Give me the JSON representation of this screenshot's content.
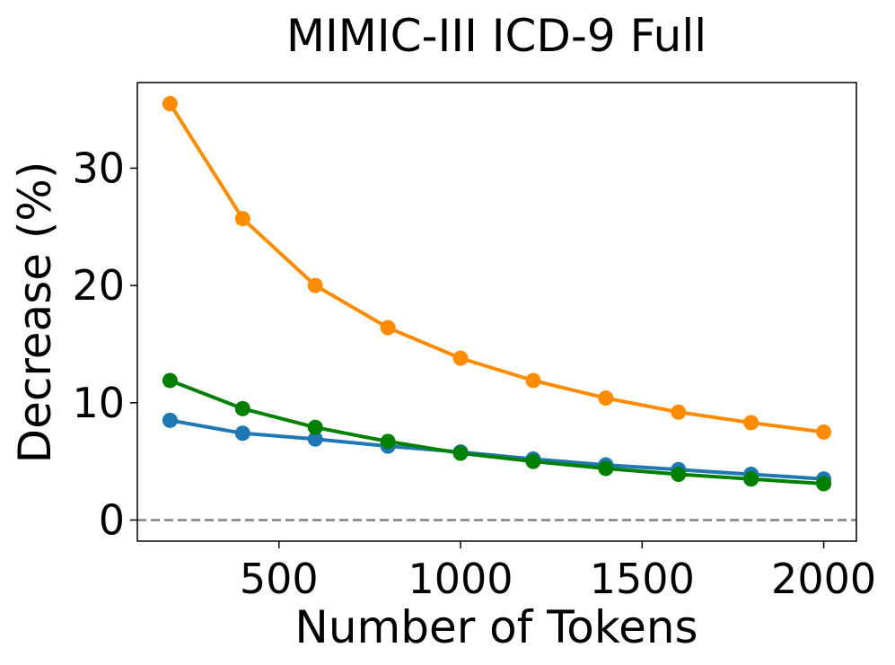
{
  "chart_data": {
    "type": "line",
    "title": "MIMIC-III ICD-9 Full",
    "xlabel": "Number of Tokens",
    "ylabel": "Decrease (%)",
    "xlim": [
      110,
      2090
    ],
    "ylim": [
      -1.8,
      37.3
    ],
    "xticks": [
      500,
      1000,
      1500,
      2000
    ],
    "yticks": [
      0,
      10,
      20,
      30
    ],
    "x": [
      200,
      400,
      600,
      800,
      1000,
      1200,
      1400,
      1600,
      1800,
      2000
    ],
    "reference_line": {
      "y": 0,
      "style": "dashed",
      "color": "#808080"
    },
    "grid": false,
    "legend": "none",
    "series": [
      {
        "color": "#ff8c00",
        "values": [
          35.5,
          25.7,
          20.0,
          16.4,
          13.8,
          11.9,
          10.4,
          9.2,
          8.3,
          7.5
        ]
      },
      {
        "color": "#008000",
        "values": [
          11.9,
          9.5,
          7.9,
          6.7,
          5.7,
          5.0,
          4.4,
          3.9,
          3.5,
          3.1
        ]
      },
      {
        "color": "#1f77b4",
        "values": [
          8.5,
          7.4,
          6.9,
          6.3,
          5.8,
          5.2,
          4.7,
          4.3,
          3.9,
          3.5
        ]
      }
    ]
  }
}
